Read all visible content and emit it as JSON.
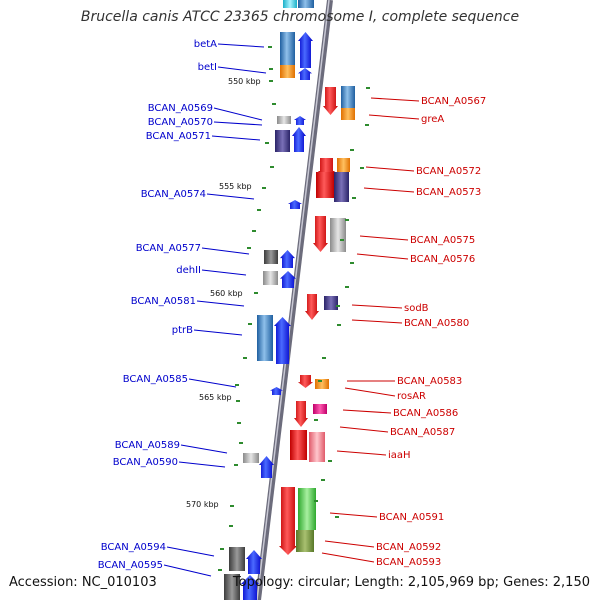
{
  "title": "Brucella canis ATCC 23365 chromosome I, complete sequence",
  "footer": {
    "accession": "Accession: NC_010103",
    "topology": "Topology: circular; Length: 2,105,969 bp; Genes: 2,150"
  },
  "colors": {
    "left_label": "#0000cc",
    "right_label": "#cc0000",
    "backbone": "#7a7a8c",
    "tick": "#2e8b2e"
  },
  "kbp_labels": [
    "550 kbp",
    "555 kbp",
    "560 kbp",
    "565 kbp",
    "570 kbp"
  ],
  "left_genes": [
    "betA",
    "betI",
    "BCAN_A0569",
    "BCAN_A0570",
    "BCAN_A0571",
    "BCAN_A0574",
    "BCAN_A0577",
    "dehII",
    "BCAN_A0581",
    "ptrB",
    "BCAN_A0585",
    "BCAN_A0589",
    "BCAN_A0590",
    "BCAN_A0594",
    "BCAN_A0595"
  ],
  "right_genes": [
    "BCAN_A0567",
    "greA",
    "BCAN_A0572",
    "BCAN_A0573",
    "BCAN_A0575",
    "BCAN_A0576",
    "sodB",
    "BCAN_A0580",
    "BCAN_A0583",
    "rosAR",
    "BCAN_A0586",
    "BCAN_A0587",
    "iaaH",
    "BCAN_A0591",
    "BCAN_A0592",
    "BCAN_A0593"
  ]
}
